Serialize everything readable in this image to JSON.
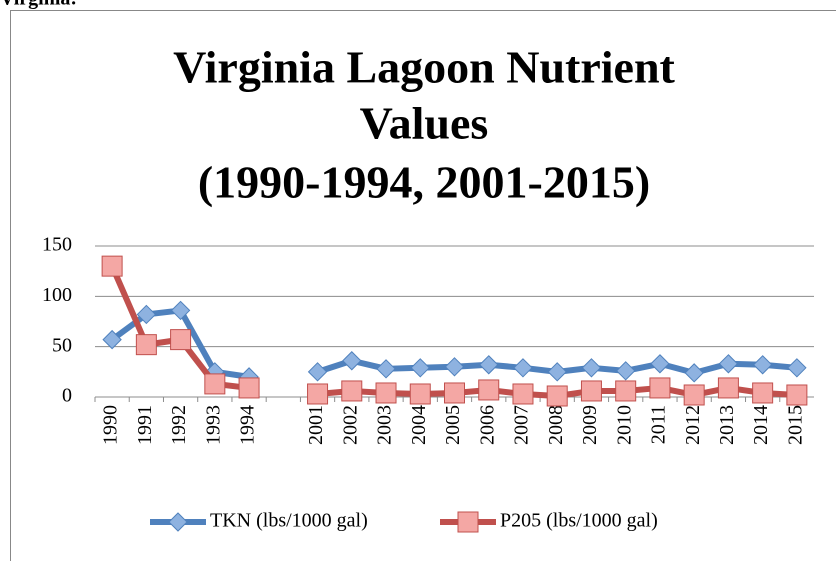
{
  "page_heading": "Virginia:",
  "chart_data": {
    "type": "line",
    "title_lines": [
      "Virginia Lagoon Nutrient",
      "Values",
      "(1990-1994, 2001-2015)"
    ],
    "categories": [
      "1990",
      "1991",
      "1992",
      "1993",
      "1994",
      null,
      "2001",
      "2002",
      "2003",
      "2004",
      "2005",
      "2006",
      "2007",
      "2008",
      "2009",
      "2010",
      "2011",
      "2012",
      "2013",
      "2014",
      "2015"
    ],
    "series": [
      {
        "name": "TKN (lbs/1000 gal)",
        "color": "#4f81bd",
        "marker": "diamond",
        "values": [
          57,
          82,
          86,
          25,
          20,
          null,
          25,
          36,
          28,
          29,
          30,
          32,
          29,
          25,
          29,
          26,
          33,
          24,
          33,
          32,
          29
        ]
      },
      {
        "name": "P205 (lbs/1000 gal)",
        "color": "#c0504d",
        "marker": "square",
        "values": [
          130,
          52,
          57,
          13,
          9,
          null,
          3,
          6,
          4,
          3,
          4,
          7,
          3,
          1,
          6,
          6,
          9,
          2,
          9,
          4,
          2
        ]
      }
    ],
    "ylim": [
      0,
      150
    ],
    "yticks": [
      0,
      50,
      100,
      150
    ],
    "grid": true,
    "legend": "bottom"
  }
}
